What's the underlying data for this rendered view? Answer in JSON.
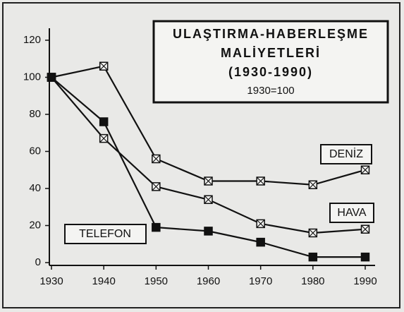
{
  "chart_data": {
    "type": "line",
    "title": [
      "ULAŞTIRMA-HABERLEŞME",
      "MALİYETLERİ",
      "(1930-1990)"
    ],
    "subtitle": "1930=100",
    "x": [
      1930,
      1940,
      1950,
      1960,
      1970,
      1980,
      1990
    ],
    "series": [
      {
        "name": "DENİZ",
        "color": "#111111",
        "marker": "square-crossed",
        "values": [
          100,
          106,
          56,
          44,
          44,
          42,
          50
        ]
      },
      {
        "name": "HAVA",
        "color": "#111111",
        "marker": "square-crossed",
        "values": [
          100,
          67,
          41,
          34,
          21,
          16,
          18
        ]
      },
      {
        "name": "TELEFON",
        "color": "#111111",
        "marker": "square-filled",
        "values": [
          100,
          76,
          19,
          17,
          11,
          3,
          3
        ]
      }
    ],
    "xlim": [
      1930,
      1990
    ],
    "xticks": [
      1930,
      1940,
      1950,
      1960,
      1970,
      1980,
      1990
    ],
    "ylim": [
      0,
      120
    ],
    "yticks": [
      0,
      20,
      40,
      60,
      80,
      100,
      120
    ],
    "grid": false
  }
}
